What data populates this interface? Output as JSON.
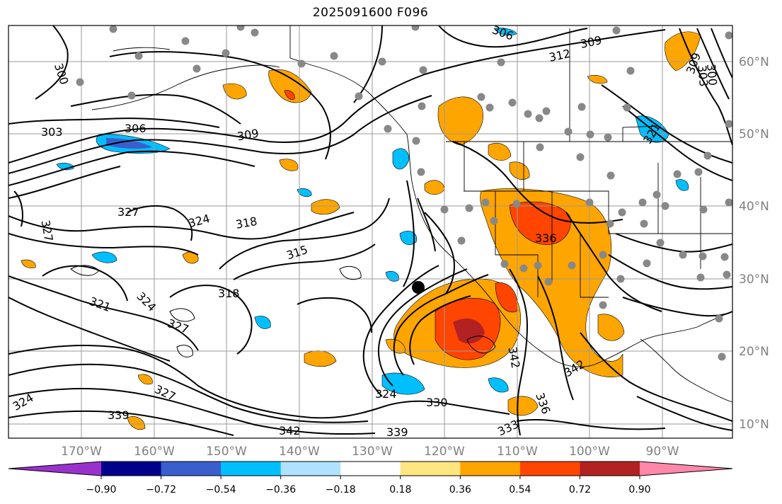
{
  "title": "2025091600 F096",
  "map": {
    "lon_labels": [
      "170°W",
      "160°W",
      "150°W",
      "140°W",
      "130°W",
      "120°W",
      "110°W",
      "100°W",
      "90°W"
    ],
    "lat_labels": [
      "60°N",
      "50°N",
      "40°N",
      "30°N",
      "20°N",
      "10°N"
    ],
    "contour_labels": [
      "300",
      "303",
      "306",
      "309",
      "312",
      "315",
      "318",
      "321",
      "324",
      "327",
      "330",
      "333",
      "336",
      "339",
      "342"
    ]
  },
  "colorbar": {
    "levels": [
      "−0.90",
      "−0.72",
      "−0.54",
      "−0.36",
      "−0.18",
      "0.18",
      "0.36",
      "0.54",
      "0.72",
      "0.90"
    ],
    "colors": [
      "#9932cc",
      "#00008b",
      "#3a5fcd",
      "#00bfff",
      "#b0e2ff",
      "#ffffff",
      "#ffe680",
      "#ffa500",
      "#ff4500",
      "#b22222",
      "#ff88aa"
    ]
  }
}
